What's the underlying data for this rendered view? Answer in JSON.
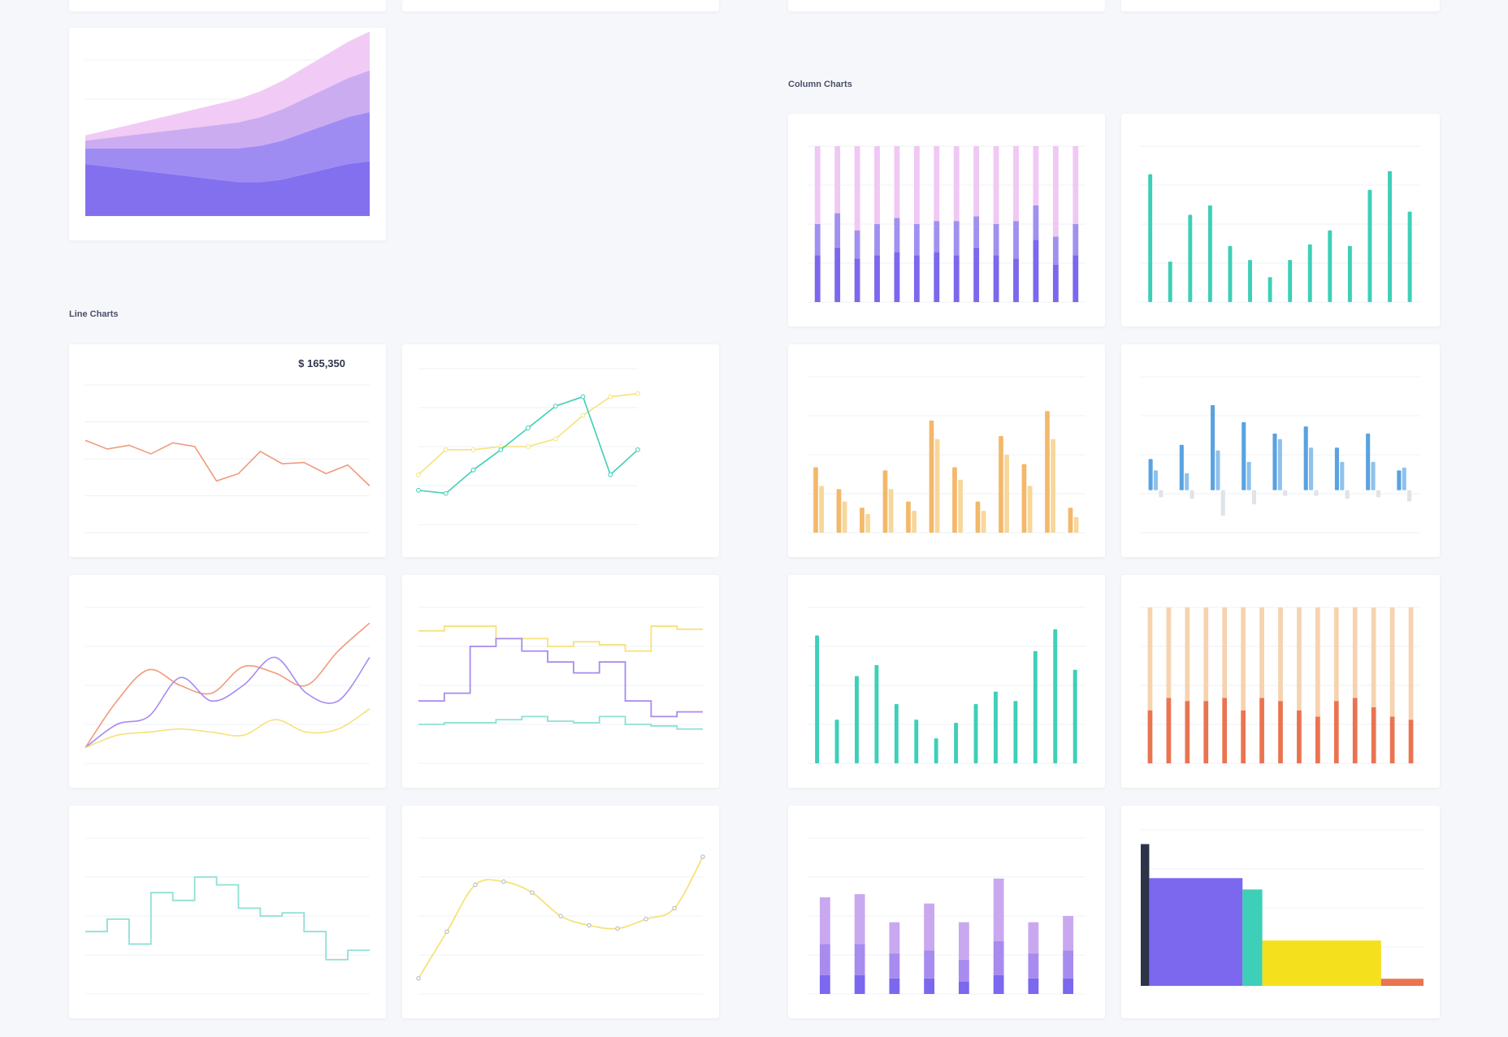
{
  "sections": {
    "line": "Line Charts",
    "column": "Column Charts"
  },
  "colors": {
    "violet": "#7b68ee",
    "lilac": "#c9a8f0",
    "pink": "#f0c8f4",
    "teal": "#3ecfb8",
    "salmon": "#f09a7c",
    "yellow": "#f5e27a",
    "orange": "#f3b86a",
    "blue": "#5aa2e0",
    "red": "#ea7450",
    "peach": "#f6d3b0",
    "navy": "#2d3448",
    "gold": "#f5e01e"
  },
  "chart_data": [
    {
      "id": "stacked-area",
      "type": "area",
      "series": [
        {
          "name": "",
          "values": [
            2.0,
            1.9,
            1.8,
            1.7,
            1.6,
            1.5,
            1.4,
            1.3,
            1.3,
            1.4,
            1.6,
            1.8,
            2.0,
            2.1
          ]
        },
        {
          "name": "",
          "values": [
            0.6,
            0.7,
            0.8,
            0.9,
            1.0,
            1.1,
            1.2,
            1.3,
            1.4,
            1.5,
            1.6,
            1.7,
            1.8,
            1.9
          ]
        },
        {
          "name": "",
          "values": [
            0.3,
            0.4,
            0.5,
            0.6,
            0.7,
            0.8,
            0.9,
            1.0,
            1.1,
            1.2,
            1.3,
            1.4,
            1.5,
            1.6
          ]
        },
        {
          "name": "",
          "values": [
            0.2,
            0.3,
            0.4,
            0.5,
            0.6,
            0.7,
            0.8,
            0.9,
            1.0,
            1.1,
            1.2,
            1.3,
            1.4,
            1.5
          ]
        }
      ],
      "ylim": [
        0,
        6
      ]
    },
    {
      "id": "balance-line",
      "type": "line",
      "value_label": "$ 165,350",
      "series": [
        {
          "name": "",
          "values": [
            75,
            68,
            71,
            64,
            73,
            70,
            42,
            48,
            66,
            56,
            57,
            48,
            55,
            38
          ]
        }
      ],
      "ylim": [
        0,
        120
      ]
    },
    {
      "id": "two-lines",
      "type": "line",
      "series": [
        {
          "name": "",
          "values": [
            32,
            48,
            48,
            50,
            50,
            55,
            70,
            82,
            84
          ]
        },
        {
          "name": "",
          "values": [
            22,
            20,
            35,
            48,
            62,
            76,
            82,
            32,
            48
          ]
        }
      ],
      "ylim": [
        0,
        100
      ]
    },
    {
      "id": "three-curves",
      "type": "line",
      "series": [
        {
          "name": "",
          "values": [
            10,
            40,
            60,
            50,
            45,
            62,
            58,
            50,
            72,
            90
          ]
        },
        {
          "name": "",
          "values": [
            10,
            25,
            30,
            55,
            40,
            50,
            68,
            45,
            40,
            68
          ]
        },
        {
          "name": "",
          "values": [
            10,
            18,
            20,
            22,
            20,
            18,
            28,
            20,
            22,
            35
          ]
        }
      ],
      "ylim": [
        0,
        100
      ]
    },
    {
      "id": "step-lines",
      "type": "line",
      "series": [
        {
          "name": "",
          "values": [
            85,
            88,
            88,
            80,
            80,
            75,
            78,
            76,
            72,
            88,
            86,
            86
          ]
        },
        {
          "name": "",
          "values": [
            40,
            45,
            75,
            80,
            72,
            65,
            58,
            65,
            40,
            30,
            33,
            33
          ]
        },
        {
          "name": "",
          "values": [
            25,
            26,
            26,
            28,
            30,
            27,
            26,
            30,
            25,
            24,
            22,
            22
          ]
        }
      ],
      "ylim": [
        0,
        100
      ]
    },
    {
      "id": "step-teal",
      "type": "line",
      "series": [
        {
          "name": "",
          "values": [
            40,
            48,
            32,
            65,
            60,
            75,
            70,
            55,
            50,
            52,
            40,
            22,
            28,
            28
          ]
        }
      ],
      "ylim": [
        0,
        100
      ]
    },
    {
      "id": "smooth-yellow",
      "type": "scatter",
      "series": [
        {
          "name": "",
          "values": [
            10,
            40,
            70,
            72,
            65,
            50,
            44,
            42,
            48,
            55,
            88
          ]
        }
      ],
      "ylim": [
        0,
        100
      ]
    },
    {
      "id": "stacked-column",
      "type": "bar",
      "series": [
        {
          "name": "",
          "values": [
            30,
            35,
            28,
            30,
            32,
            30,
            32,
            30,
            35,
            30,
            28,
            40,
            24,
            30
          ]
        },
        {
          "name": "",
          "values": [
            20,
            22,
            18,
            20,
            22,
            20,
            20,
            22,
            20,
            20,
            24,
            22,
            18,
            20
          ]
        },
        {
          "name": "",
          "values": [
            50,
            43,
            54,
            50,
            46,
            50,
            48,
            48,
            45,
            50,
            48,
            38,
            58,
            50
          ]
        }
      ],
      "ylim": [
        0,
        100
      ]
    },
    {
      "id": "teal-columns",
      "type": "bar",
      "series": [
        {
          "name": "",
          "values": [
            82,
            26,
            56,
            62,
            36,
            27,
            16,
            27,
            37,
            46,
            36,
            72,
            84,
            58
          ]
        }
      ],
      "ylim": [
        0,
        100
      ]
    },
    {
      "id": "orange-pairs",
      "type": "bar",
      "series": [
        {
          "name": "",
          "values": [
            42,
            28,
            16,
            40,
            20,
            72,
            42,
            20,
            62,
            44,
            78,
            16
          ]
        },
        {
          "name": "",
          "values": [
            30,
            20,
            12,
            28,
            14,
            60,
            34,
            14,
            50,
            30,
            60,
            10
          ]
        }
      ],
      "ylim": [
        0,
        100
      ]
    },
    {
      "id": "blue-pos-neg",
      "type": "bar",
      "series": [
        {
          "name": "",
          "values": [
            22,
            32,
            60,
            48,
            40,
            45,
            30,
            40,
            14
          ]
        },
        {
          "name": "",
          "values": [
            14,
            12,
            28,
            20,
            36,
            30,
            20,
            20,
            16
          ]
        },
        {
          "name": "",
          "values": [
            -5,
            -6,
            -18,
            -10,
            -4,
            -4,
            -6,
            -5,
            -8
          ]
        }
      ],
      "ylim": [
        -30,
        80
      ]
    },
    {
      "id": "teal-columns-2",
      "type": "bar",
      "series": [
        {
          "name": "",
          "values": [
            82,
            28,
            56,
            63,
            38,
            28,
            16,
            26,
            38,
            46,
            40,
            72,
            86,
            60
          ]
        }
      ],
      "ylim": [
        0,
        100
      ]
    },
    {
      "id": "red-stacked",
      "type": "bar",
      "series": [
        {
          "name": "",
          "values": [
            34,
            42,
            40,
            40,
            42,
            34,
            42,
            40,
            34,
            30,
            40,
            42,
            36,
            30,
            28
          ]
        },
        {
          "name": "",
          "values": [
            66,
            58,
            60,
            60,
            58,
            66,
            58,
            60,
            66,
            70,
            60,
            58,
            64,
            70,
            72
          ]
        }
      ],
      "ylim": [
        0,
        100
      ]
    },
    {
      "id": "purple-stacked",
      "type": "bar",
      "series": [
        {
          "name": "",
          "values": [
            12,
            12,
            10,
            10,
            8,
            12,
            10,
            10
          ]
        },
        {
          "name": "",
          "values": [
            20,
            20,
            16,
            18,
            14,
            22,
            16,
            18
          ]
        },
        {
          "name": "",
          "values": [
            30,
            32,
            20,
            30,
            24,
            40,
            20,
            22
          ]
        }
      ],
      "ylim": [
        0,
        100
      ]
    },
    {
      "id": "histogram",
      "type": "bar",
      "series": [
        {
          "name": "",
          "values": [
            100
          ]
        },
        {
          "name": "",
          "values": [
            76
          ]
        },
        {
          "name": "",
          "values": [
            68
          ]
        },
        {
          "name": "",
          "values": [
            32
          ]
        },
        {
          "name": "",
          "values": [
            5
          ]
        }
      ],
      "ylim": [
        0,
        110
      ]
    }
  ]
}
